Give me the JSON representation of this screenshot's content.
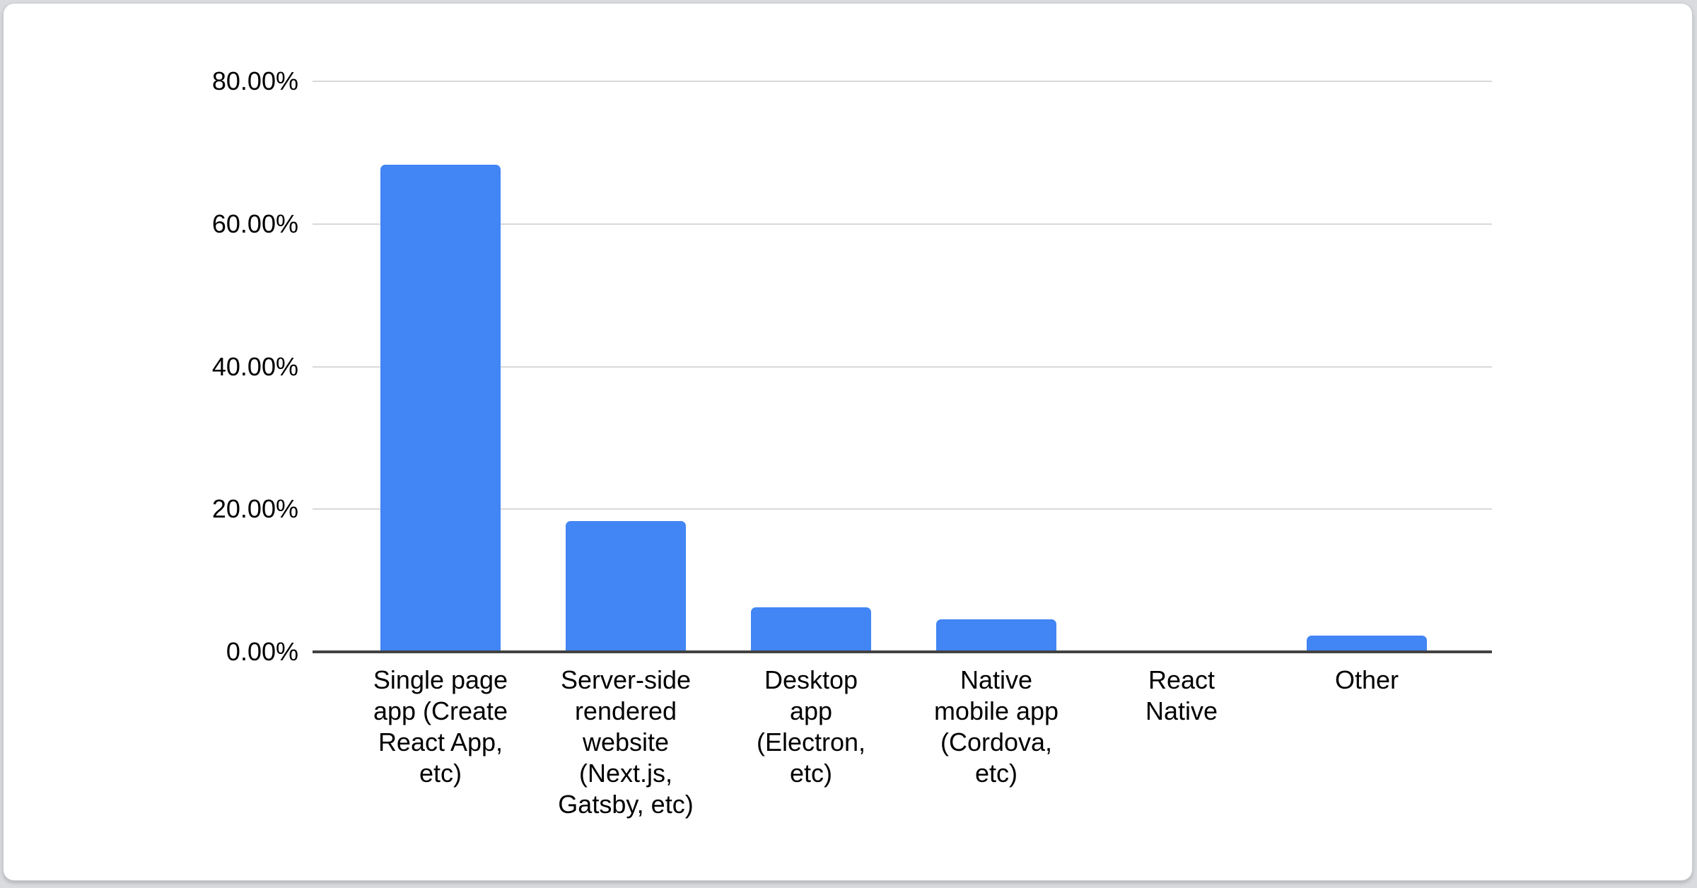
{
  "surface": {
    "page_background": "#d9dbdf",
    "card_background": "#ffffff",
    "card_border_color": "#c9ccd1"
  },
  "chart_data": {
    "type": "bar",
    "categories": [
      "Single page app (Create React App, etc)",
      "Server-side rendered website (Next.js, Gatsby, etc)",
      "Desktop app (Electron, etc)",
      "Native mobile app (Cordova, etc)",
      "React Native",
      "Other"
    ],
    "category_tick_lines": [
      "Single page\napp (Create\nReact App,\netc)",
      "Server-side\nrendered\nwebsite\n(Next.js,\nGatsby, etc)",
      "Desktop\napp\n(Electron,\netc)",
      "Native\nmobile app\n(Cordova,\netc)",
      "React\nNative",
      "Other"
    ],
    "values": [
      68.3,
      18.3,
      6.2,
      4.6,
      0,
      2.3
    ],
    "value_unit": "%",
    "xlabel": "",
    "ylabel": "",
    "ylim": [
      0,
      80
    ],
    "yticks": [
      0,
      20,
      40,
      60,
      80
    ],
    "ytick_labels": [
      "0.00%",
      "20.00%",
      "40.00%",
      "60.00%",
      "80.00%"
    ],
    "grid": true,
    "legend_position": "none",
    "bar_color": "#4285f4",
    "gridline_color": "#d9d9d9",
    "axis_line_color": "#424242",
    "tick_label_color": "#000000"
  }
}
